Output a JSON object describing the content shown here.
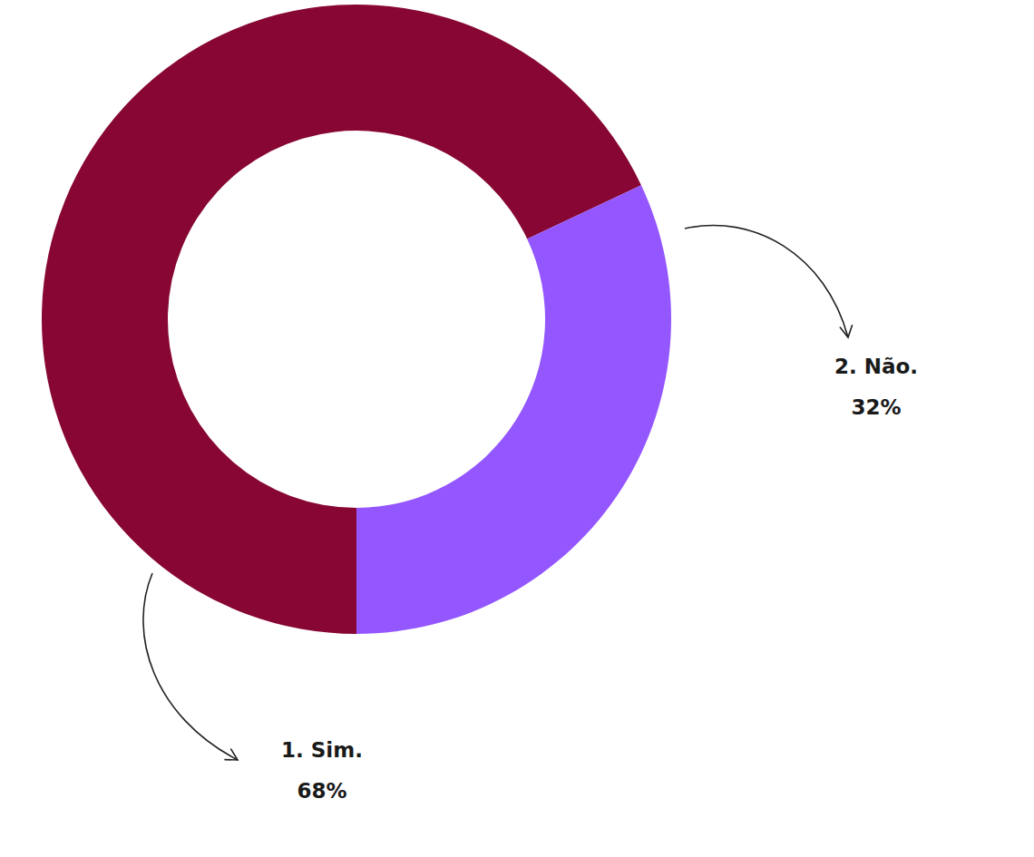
{
  "chart_data": {
    "type": "pie",
    "categories": [
      "1. Sim.",
      "2. Não."
    ],
    "values": [
      68,
      32
    ],
    "value_labels": [
      "68%",
      "32%"
    ],
    "colors": [
      "#870633",
      "#9457FF"
    ]
  }
}
